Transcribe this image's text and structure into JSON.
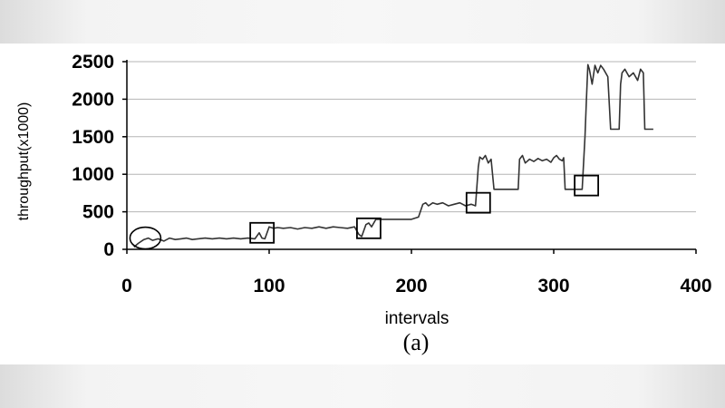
{
  "chart_data": {
    "type": "line",
    "xlabel": "intervals",
    "ylabel": "throughput(x1000)",
    "caption": "(a)",
    "xlim": [
      0,
      400
    ],
    "ylim": [
      0,
      2500
    ],
    "x_ticks": [
      "0",
      "100",
      "200",
      "300",
      "400"
    ],
    "y_ticks": [
      "0",
      "500",
      "1000",
      "1500",
      "2000",
      "2500"
    ],
    "grid": "horizontal",
    "line_color": "#333333",
    "series": [
      {
        "x": [
          5,
          8,
          12,
          15,
          18,
          22,
          26,
          30,
          34,
          38,
          42,
          46,
          50,
          55,
          60,
          65,
          70,
          75,
          80,
          85,
          90,
          93,
          95,
          97,
          100,
          103,
          106,
          110,
          115,
          120,
          125,
          130,
          135,
          140,
          145,
          150,
          155,
          160,
          163,
          165,
          168,
          170,
          172,
          175,
          180,
          190,
          200,
          205,
          208,
          210,
          212,
          215,
          218,
          222,
          226,
          230,
          234,
          238,
          242,
          245,
          247,
          248,
          250,
          252,
          254,
          256,
          258,
          260,
          270,
          275,
          276,
          278,
          280,
          283,
          286,
          289,
          292,
          295,
          298,
          300,
          302,
          304,
          306,
          307,
          308,
          310,
          315,
          320,
          322,
          323,
          324,
          325,
          327,
          329,
          331,
          333,
          335,
          338,
          340,
          345,
          346,
          347,
          348,
          350,
          353,
          356,
          359,
          361,
          363,
          364,
          365,
          370
        ],
        "y": [
          30,
          80,
          130,
          150,
          120,
          140,
          110,
          150,
          130,
          140,
          150,
          130,
          140,
          150,
          140,
          150,
          140,
          150,
          140,
          150,
          140,
          220,
          150,
          140,
          300,
          280,
          290,
          280,
          290,
          270,
          290,
          280,
          300,
          280,
          300,
          290,
          280,
          300,
          200,
          170,
          330,
          350,
          300,
          400,
          400,
          400,
          400,
          430,
          600,
          620,
          580,
          620,
          600,
          620,
          580,
          600,
          620,
          580,
          600,
          580,
          1100,
          1230,
          1200,
          1250,
          1150,
          1200,
          800,
          800,
          800,
          800,
          1200,
          1250,
          1150,
          1200,
          1170,
          1210,
          1180,
          1200,
          1160,
          1220,
          1250,
          1200,
          1180,
          1220,
          800,
          800,
          800,
          800,
          1500,
          2000,
          2460,
          2400,
          2200,
          2450,
          2350,
          2450,
          2400,
          2300,
          1600,
          1600,
          1600,
          2200,
          2350,
          2400,
          2300,
          2350,
          2250,
          2400,
          2350,
          1600,
          1600,
          1600
        ]
      }
    ],
    "annotations": [
      {
        "shape": "ellipse",
        "x": 13,
        "y": 150
      },
      {
        "shape": "square",
        "x": 95,
        "y": 220
      },
      {
        "shape": "square",
        "x": 170,
        "y": 280
      },
      {
        "shape": "square",
        "x": 247,
        "y": 620
      },
      {
        "shape": "square",
        "x": 323,
        "y": 850
      }
    ]
  }
}
